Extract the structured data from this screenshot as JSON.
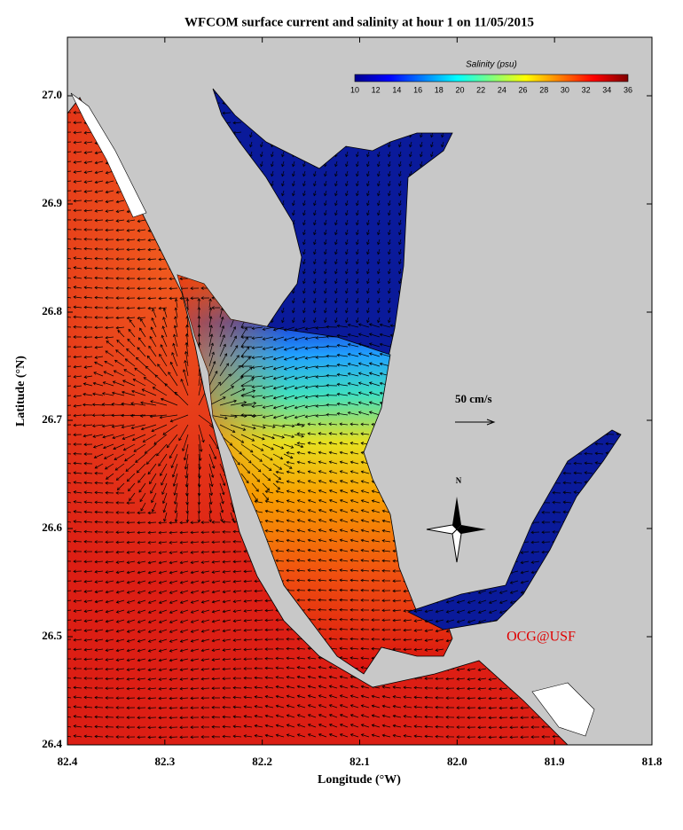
{
  "title": "WFCOM surface current and salinity at hour 1 on 11/05/2015",
  "x_axis": {
    "label": "Longitude (°W)",
    "ticks": [
      "82.4",
      "82.3",
      "82.2",
      "82.1",
      "82.0",
      "81.9",
      "81.8"
    ]
  },
  "y_axis": {
    "label": "Latitude (°N)",
    "ticks": [
      "27.0",
      "26.9",
      "26.8",
      "26.7",
      "26.6",
      "26.5",
      "26.4"
    ]
  },
  "colorbar": {
    "label": "Salinity (psu)",
    "ticks": [
      10,
      12,
      14,
      16,
      18,
      20,
      22,
      24,
      26,
      28,
      30,
      32,
      34,
      36
    ]
  },
  "scale_arrow": "50 cm/s",
  "compass": "N",
  "credit": "OCG@USF"
}
